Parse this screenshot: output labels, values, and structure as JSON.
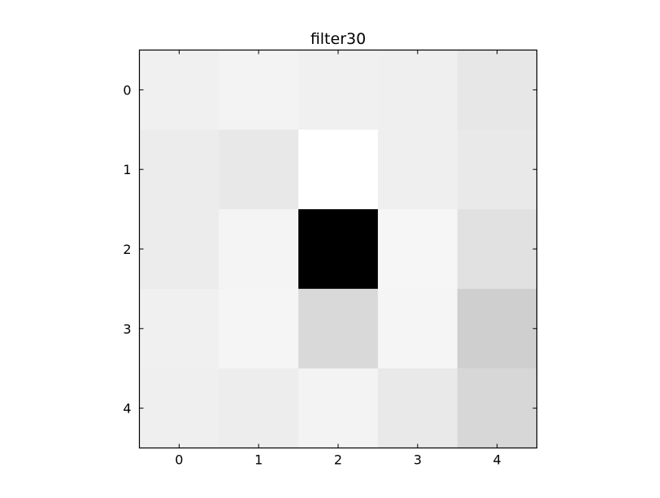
{
  "chart_data": {
    "type": "heatmap",
    "title": "filter30",
    "colormap": "gray",
    "x_ticks": [
      "0",
      "1",
      "2",
      "3",
      "4"
    ],
    "y_ticks": [
      "0",
      "1",
      "2",
      "3",
      "4"
    ],
    "xlim": [
      -0.5,
      4.5
    ],
    "ylim": [
      4.5,
      -0.5
    ],
    "grid": false,
    "legend": "none",
    "value_range": [
      0,
      255
    ],
    "values": [
      [
        240,
        243,
        240,
        239,
        231
      ],
      [
        236,
        232,
        255,
        239,
        233
      ],
      [
        236,
        244,
        0,
        246,
        225
      ],
      [
        240,
        245,
        217,
        245,
        207
      ],
      [
        239,
        237,
        243,
        233,
        215
      ]
    ]
  }
}
